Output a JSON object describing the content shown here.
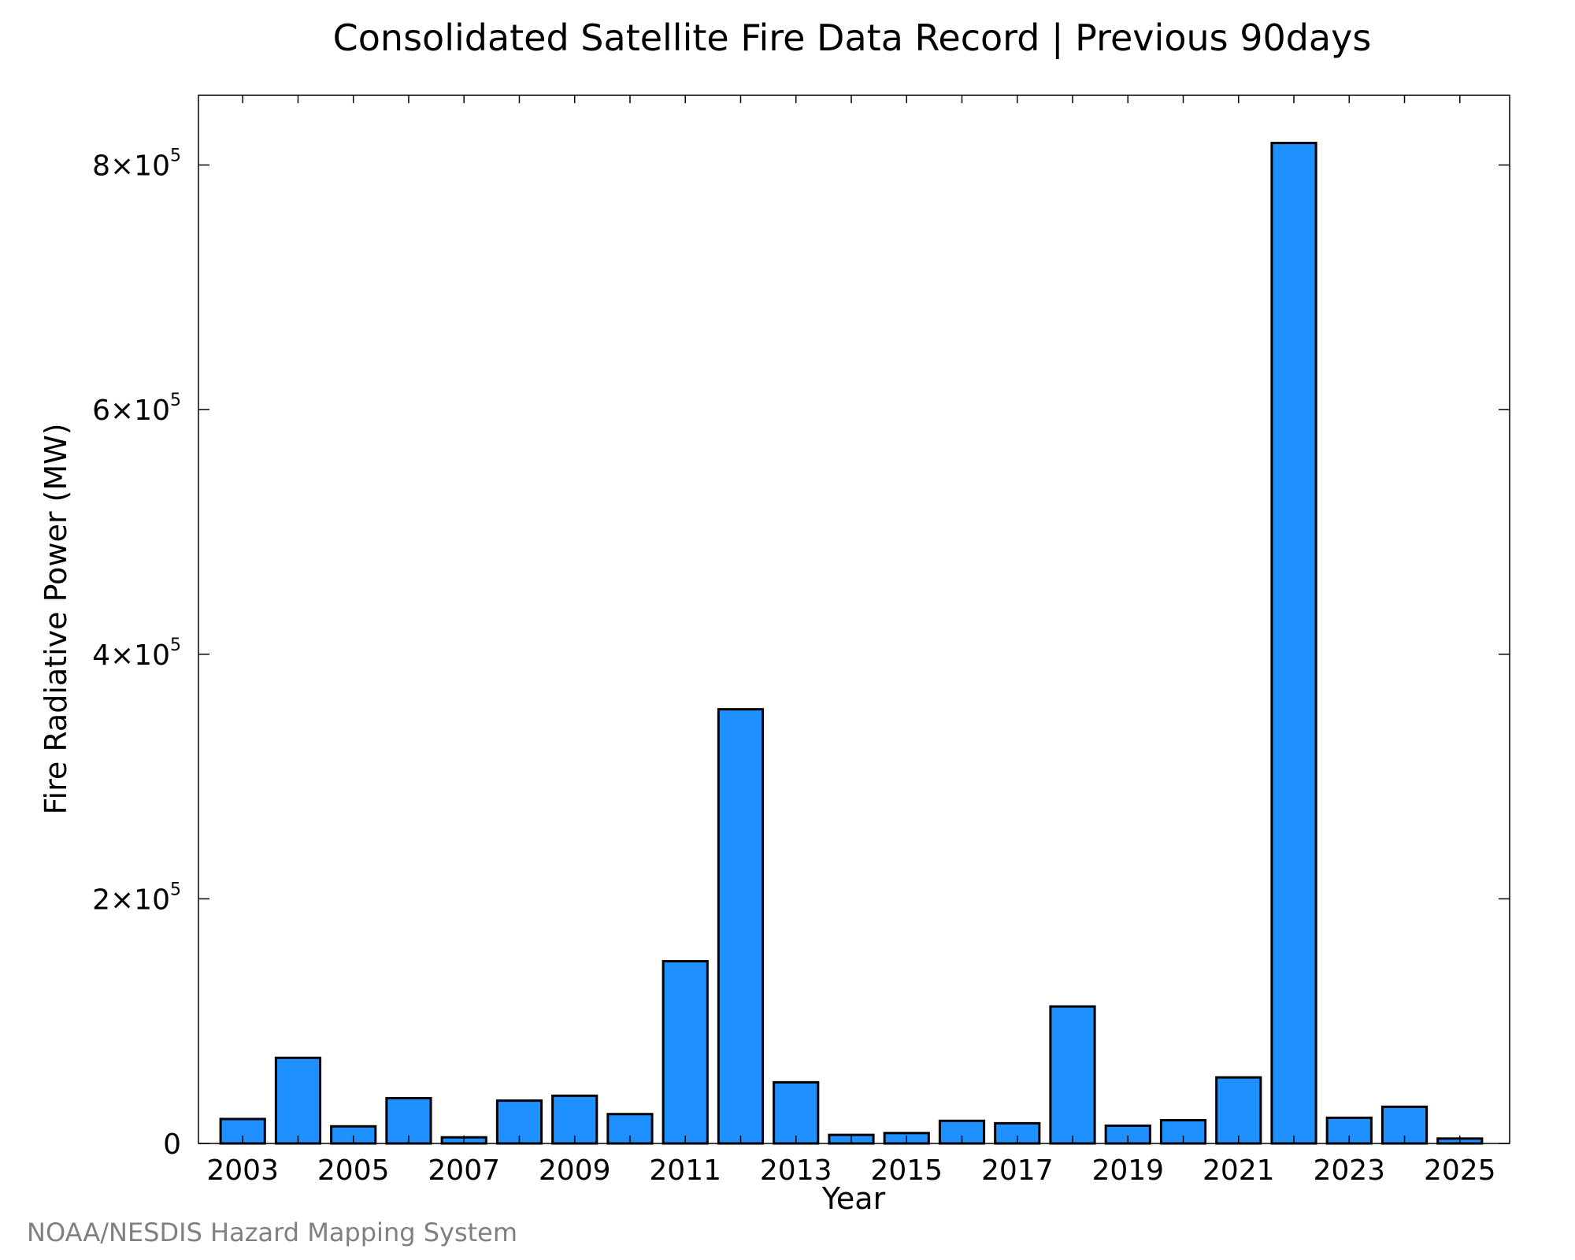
{
  "chart_data": {
    "type": "bar",
    "title": "Consolidated Satellite Fire Data Record | Previous 90days",
    "xlabel": "Year",
    "ylabel": "Fire Radiative Power (MW)",
    "x": [
      2003,
      2004,
      2005,
      2006,
      2007,
      2008,
      2009,
      2010,
      2011,
      2012,
      2013,
      2014,
      2015,
      2016,
      2017,
      2018,
      2019,
      2020,
      2021,
      2022,
      2023,
      2024,
      2025
    ],
    "values": [
      20000,
      70000,
      14000,
      37000,
      5000,
      35000,
      39000,
      24000,
      149000,
      355000,
      50000,
      7000,
      8500,
      18500,
      16500,
      112000,
      14500,
      19000,
      54000,
      818000,
      21000,
      30000,
      4000
    ],
    "x_tick_labels": [
      "2003",
      "2005",
      "2007",
      "2009",
      "2011",
      "2013",
      "2015",
      "2017",
      "2019",
      "2021",
      "2023",
      "2025"
    ],
    "y_ticks": [
      {
        "value": 0,
        "mantissa": "0",
        "exponent": ""
      },
      {
        "value": 200000,
        "mantissa": "2×10",
        "exponent": "5"
      },
      {
        "value": 400000,
        "mantissa": "4×10",
        "exponent": "5"
      },
      {
        "value": 600000,
        "mantissa": "6×10",
        "exponent": "5"
      },
      {
        "value": 800000,
        "mantissa": "8×10",
        "exponent": "5"
      }
    ],
    "xlim": [
      2002.2,
      2025.9
    ],
    "ylim": [
      0,
      857000
    ],
    "grid": false,
    "colors": {
      "bar_fill": "#1e90ff",
      "bar_edge": "#000000"
    }
  },
  "credit": "NOAA/NESDIS Hazard Mapping System"
}
